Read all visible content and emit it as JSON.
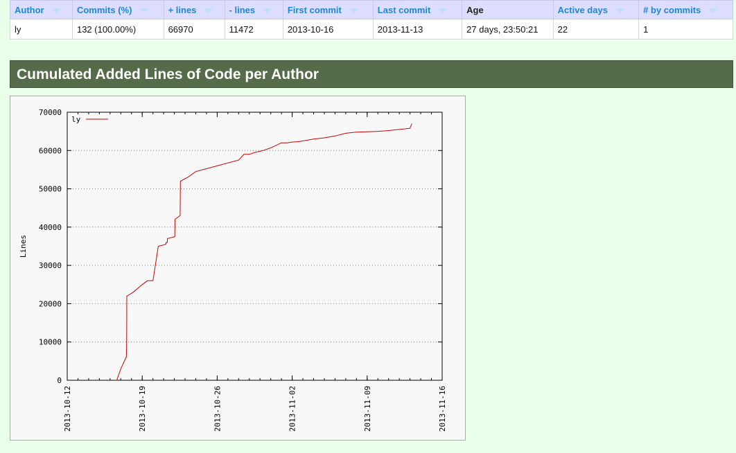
{
  "table": {
    "headers": [
      {
        "label": "Author",
        "sortable": true
      },
      {
        "label": "Commits (%)",
        "sortable": true
      },
      {
        "label": "+ lines",
        "sortable": true
      },
      {
        "label": "- lines",
        "sortable": true
      },
      {
        "label": "First commit",
        "sortable": true
      },
      {
        "label": "Last commit",
        "sortable": true
      },
      {
        "label": "Age",
        "sortable": false
      },
      {
        "label": "Active days",
        "sortable": true
      },
      {
        "label": "# by commits",
        "sortable": true
      }
    ],
    "rows": [
      [
        "ly",
        "132 (100.00%)",
        "66970",
        "11472",
        "2013-10-16",
        "2013-11-13",
        "27 days, 23:50:21",
        "22",
        "1"
      ]
    ]
  },
  "section": {
    "title": "Cumulated Added Lines of Code per Author"
  },
  "colors": {
    "header_link": "#1d86d6",
    "section_bg": "#556b4a",
    "series": "#cc0000"
  },
  "chart_data": {
    "type": "line",
    "title": "",
    "xlabel": "",
    "ylabel": "Lines",
    "ylim": [
      0,
      70000
    ],
    "y_ticks": [
      "0",
      "10000",
      "20000",
      "30000",
      "40000",
      "50000",
      "60000",
      "70000"
    ],
    "xlim": [
      "2013-10-12",
      "2013-11-16"
    ],
    "x_ticks": [
      "2013-10-12",
      "2013-10-19",
      "2013-10-26",
      "2013-11-02",
      "2013-11-09",
      "2013-11-16"
    ],
    "grid": true,
    "legend": "top-left",
    "series": [
      {
        "name": "ly",
        "color": "#cc0000",
        "x": [
          "2013-10-16 13:00",
          "2013-10-16 15:00",
          "2013-10-17 00:00",
          "2013-10-17 12:00",
          "2013-10-17 12:30",
          "2013-10-17 13:00",
          "2013-10-17 13:30",
          "2013-10-17 14:00",
          "2013-10-18 04:00",
          "2013-10-19 00:00",
          "2013-10-19 12:00",
          "2013-10-20 00:00",
          "2013-10-20 12:00",
          "2013-10-21 05:00",
          "2013-10-21 05:30",
          "2013-10-21 08:00",
          "2013-10-21 08:30",
          "2013-10-22 01:00",
          "2013-10-22 01:30",
          "2013-10-22 03:00",
          "2013-10-22 03:30",
          "2013-10-22 13:00",
          "2013-10-22 13:30",
          "2013-10-23 06:00",
          "2013-10-24 00:00",
          "2013-10-26 00:00",
          "2013-10-28 00:00",
          "2013-10-28 12:00",
          "2013-10-29 00:00",
          "2013-10-29 12:00",
          "2013-10-30 00:00",
          "2013-10-30 12:00",
          "2013-10-31 00:00",
          "2013-11-01 00:00",
          "2013-11-01 12:00",
          "2013-11-02 00:00",
          "2013-11-02 12:00",
          "2013-11-03 00:00",
          "2013-11-04 00:00",
          "2013-11-05 00:00",
          "2013-11-06 00:00",
          "2013-11-07 00:00",
          "2013-11-08 00:00",
          "2013-11-09 00:00",
          "2013-11-10 00:00",
          "2013-11-11 00:00",
          "2013-11-12 00:00",
          "2013-11-13 00:00",
          "2013-11-13 04:00"
        ],
        "values": [
          0,
          0,
          3000,
          6000,
          6000,
          9000,
          22000,
          22000,
          23000,
          25000,
          26000,
          26000,
          35000,
          35500,
          36000,
          36000,
          37000,
          37500,
          42000,
          42200,
          42200,
          43000,
          52000,
          53000,
          54500,
          56000,
          57500,
          59000,
          59000,
          59500,
          59800,
          60200,
          60700,
          62000,
          62000,
          62200,
          62300,
          62500,
          63000,
          63300,
          63800,
          64500,
          64800,
          64900,
          65000,
          65200,
          65500,
          65800,
          67000
        ]
      }
    ]
  }
}
